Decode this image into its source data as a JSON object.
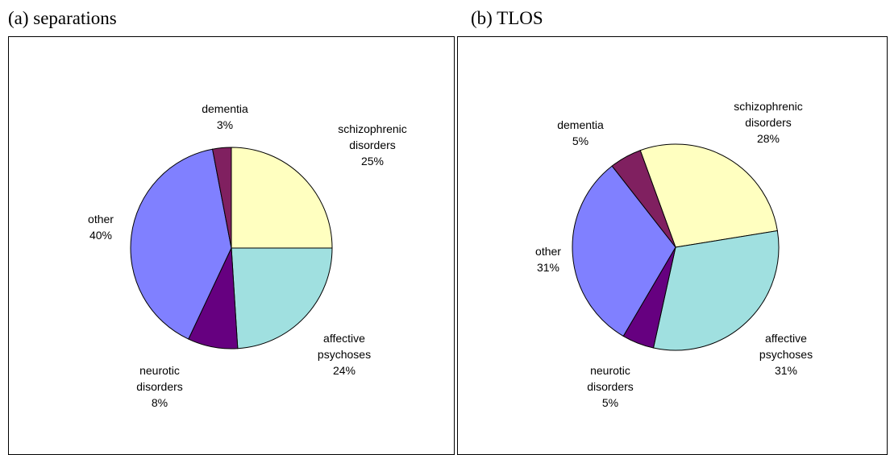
{
  "chart_data": [
    {
      "type": "pie",
      "title": "(a) separations",
      "categories": [
        "schizophrenic disorders",
        "affective psychoses",
        "neurotic disorders",
        "other",
        "dementia"
      ],
      "values": [
        25,
        24,
        8,
        40,
        3
      ],
      "value_labels": [
        "25%",
        "24%",
        "8%",
        "40%",
        "3%"
      ],
      "colors": [
        "#ffffc0",
        "#a0e0e0",
        "#660080",
        "#8080ff",
        "#802060"
      ],
      "start_angle": 0
    },
    {
      "type": "pie",
      "title": "(b) TLOS",
      "categories": [
        "schizophrenic disorders",
        "affective psychoses",
        "neurotic disorders",
        "other",
        "dementia"
      ],
      "values": [
        28,
        31,
        5,
        31,
        5
      ],
      "value_labels": [
        "28%",
        "31%",
        "5%",
        "31%",
        "5%"
      ],
      "colors": [
        "#ffffc0",
        "#a0e0e0",
        "#660080",
        "#8080ff",
        "#802060"
      ],
      "start_angle": -20
    }
  ]
}
